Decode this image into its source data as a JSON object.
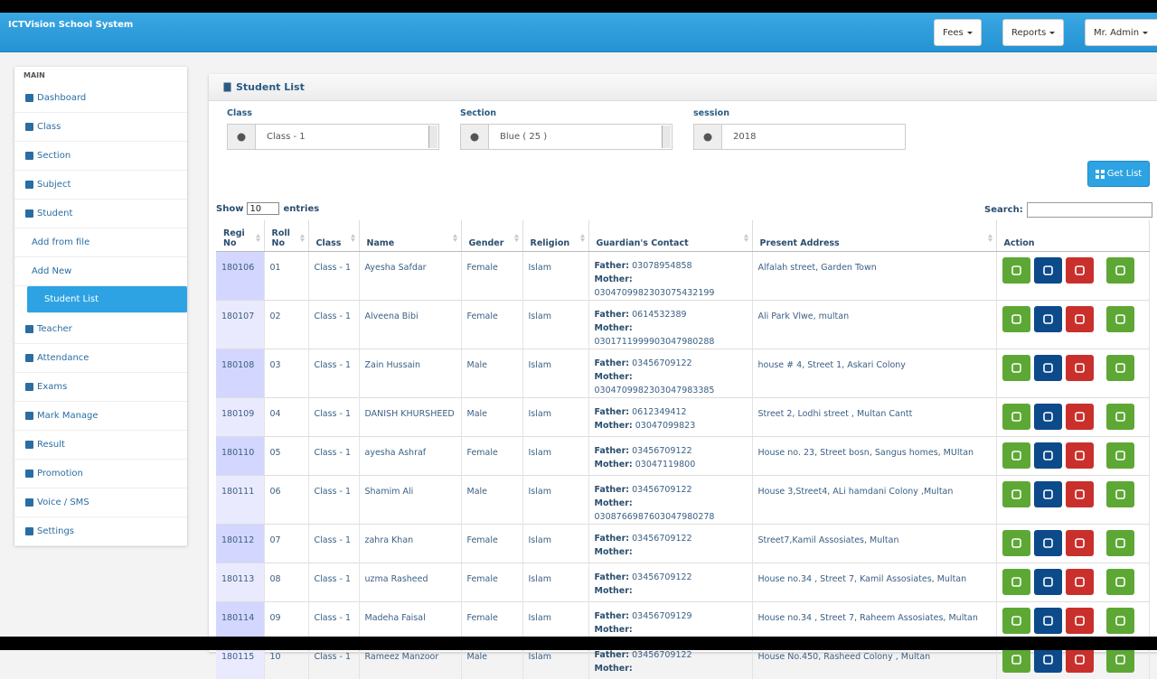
{
  "header": {
    "title": "ICTVision School System",
    "buttons": [
      "Fees",
      "Reports",
      "Mr. Admin"
    ]
  },
  "sidebar": {
    "heading": "MAIN",
    "items": [
      {
        "label": "Dashboard"
      },
      {
        "label": "Class"
      },
      {
        "label": "Section"
      },
      {
        "label": "Subject"
      },
      {
        "label": "Student"
      },
      {
        "label": "Add from file",
        "sub": true
      },
      {
        "label": "Add New",
        "sub": true
      },
      {
        "label": "Student List",
        "sub": true,
        "active": true
      },
      {
        "label": "Teacher"
      },
      {
        "label": "Attendance"
      },
      {
        "label": "Exams"
      },
      {
        "label": "Mark Manage"
      },
      {
        "label": "Result"
      },
      {
        "label": "Promotion"
      },
      {
        "label": "Voice / SMS"
      },
      {
        "label": "Settings"
      }
    ]
  },
  "panel": {
    "title": "Student List",
    "filters": [
      {
        "label": "Class",
        "value": "Class - 1"
      },
      {
        "label": "Section",
        "value": "Blue ( 25 )"
      },
      {
        "label": "session",
        "value": "2018"
      }
    ],
    "button": "Get List",
    "show": "Show",
    "page_size": "10",
    "entries": "entries",
    "search": "Search:"
  },
  "table": {
    "columns": [
      "Regi No",
      "Roll No",
      "Class",
      "Name",
      "Gender",
      "Religion",
      "Guardian's Contact",
      "Present Address",
      "Action"
    ],
    "father_label": "Father:",
    "mother_label": "Mother:",
    "rows": [
      {
        "regi": "180106",
        "roll": "01",
        "class": "Class - 1",
        "name": "Ayesha Safdar",
        "gender": "Female",
        "religion": "Islam",
        "father": "03078954858",
        "mother": "0304709982303075432199",
        "address": "Alfalah street, Garden Town"
      },
      {
        "regi": "180107",
        "roll": "02",
        "class": "Class - 1",
        "name": "Alveena Bibi",
        "gender": "Female",
        "religion": "Islam",
        "father": "0614532389",
        "mother": "0301711999903047980288",
        "address": "Ali Park Vlwe, multan"
      },
      {
        "regi": "180108",
        "roll": "03",
        "class": "Class - 1",
        "name": "Zain Hussain",
        "gender": "Male",
        "religion": "Islam",
        "father": "03456709122",
        "mother": "0304709982303047983385",
        "address": "house # 4, Street 1, Askari Colony"
      },
      {
        "regi": "180109",
        "roll": "04",
        "class": "Class - 1",
        "name": "DANISH KHURSHEED",
        "gender": "Male",
        "religion": "Islam",
        "father": "0612349412",
        "mother": "03047099823",
        "address": "Street 2, Lodhi street , Multan Cantt"
      },
      {
        "regi": "180110",
        "roll": "05",
        "class": "Class - 1",
        "name": "ayesha Ashraf",
        "gender": "Female",
        "religion": "Islam",
        "father": "03456709122",
        "mother": "03047119800",
        "address": "House no. 23, Street bosn, Sangus homes, MUltan"
      },
      {
        "regi": "180111",
        "roll": "06",
        "class": "Class - 1",
        "name": "Shamim Ali",
        "gender": "Male",
        "religion": "Islam",
        "father": "03456709122",
        "mother": "0308766987603047980278",
        "address": "House 3,Street4, ALi hamdani Colony ,Multan"
      },
      {
        "regi": "180112",
        "roll": "07",
        "class": "Class - 1",
        "name": "zahra Khan",
        "gender": "Female",
        "religion": "Islam",
        "father": "03456709122",
        "mother": null,
        "address": "Street7,Kamil Assosiates, Multan"
      },
      {
        "regi": "180113",
        "roll": "08",
        "class": "Class - 1",
        "name": "uzma Rasheed",
        "gender": "Female",
        "religion": "Islam",
        "father": "03456709122",
        "mother": null,
        "address": "House no.34 , Street 7, Kamil Assosiates, Multan"
      },
      {
        "regi": "180114",
        "roll": "09",
        "class": "Class - 1",
        "name": "Madeha Faisal",
        "gender": "Female",
        "religion": "Islam",
        "father": "03456709129",
        "mother": null,
        "address": "House no.34 , Street 7, Raheem Assosiates, Multan"
      },
      {
        "regi": "180115",
        "roll": "10",
        "class": "Class - 1",
        "name": "Rameez Manzoor",
        "gender": "Male",
        "religion": "Islam",
        "father": "03456709122",
        "mother": null,
        "address": "House No.450, Rasheed Colony , Multan"
      }
    ]
  }
}
